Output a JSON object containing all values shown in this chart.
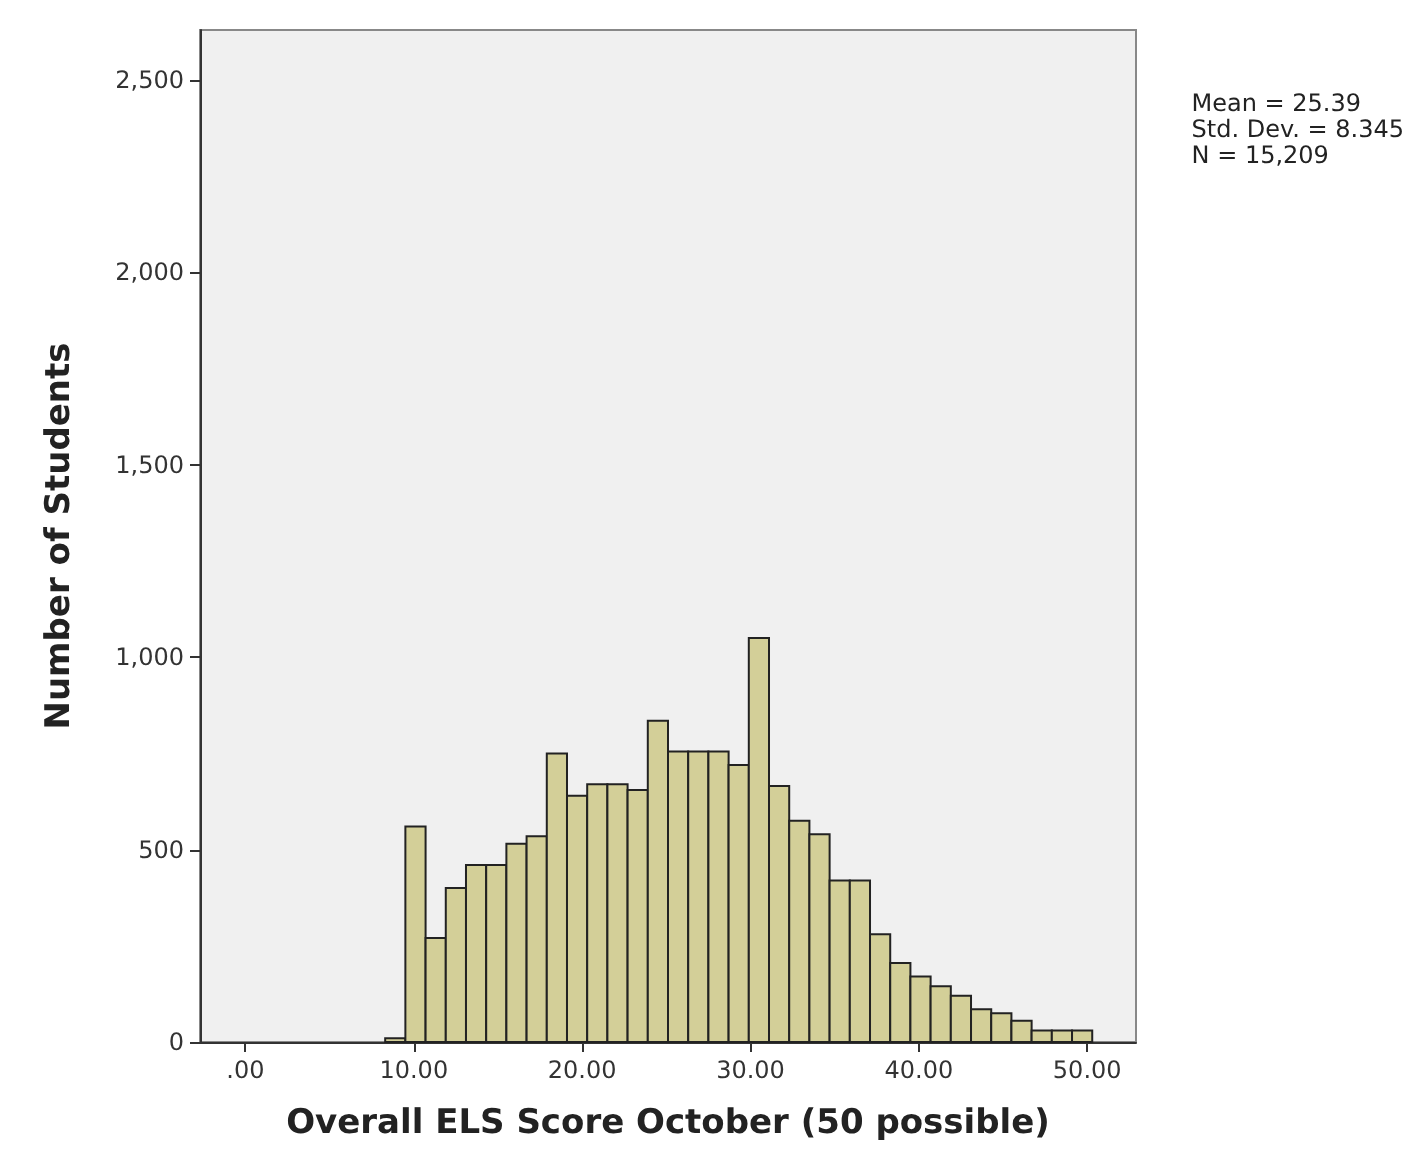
{
  "chart_data": {
    "type": "histogram",
    "xlabel": "Overall ELS Score October (50 possible)",
    "ylabel": "Number of Students",
    "bins": [
      5.9,
      7.1,
      8.3,
      9.5,
      10.7,
      11.9,
      13.1,
      14.3,
      15.5,
      16.7,
      17.9,
      19.1,
      20.3,
      21.5,
      22.7,
      23.9,
      25.1,
      26.3,
      27.5,
      28.7,
      29.9,
      31.1,
      32.3,
      33.5,
      34.7,
      35.9,
      37.1,
      38.3,
      39.5,
      40.7,
      41.9,
      43.1,
      44.3,
      45.5,
      46.7,
      47.9,
      49.1,
      50.3
    ],
    "values": [
      null,
      null,
      10,
      560,
      270,
      400,
      460,
      460,
      515,
      535,
      750,
      640,
      670,
      670,
      655,
      835,
      755,
      755,
      755,
      720,
      1050,
      665,
      575,
      540,
      420,
      420,
      280,
      205,
      170,
      145,
      120,
      85,
      75,
      55,
      30,
      30,
      30
    ],
    "color": "#d3cf98",
    "xlim": [
      -2.7,
      52.9
    ],
    "xticks": [
      {
        "value": 0,
        "label": ".00"
      },
      {
        "value": 10,
        "label": "10.00"
      },
      {
        "value": 20,
        "label": "20.00"
      },
      {
        "value": 30,
        "label": "30.00"
      },
      {
        "value": 40,
        "label": "40.00"
      },
      {
        "value": 50,
        "label": "50.00"
      }
    ],
    "ylim": [
      0,
      2630
    ],
    "yticks": [
      {
        "value": 0,
        "label": "0"
      },
      {
        "value": 500,
        "label": "500"
      },
      {
        "value": 1000,
        "label": "1,000"
      },
      {
        "value": 1500,
        "label": "1,500"
      },
      {
        "value": 2000,
        "label": "2,000"
      },
      {
        "value": 2500,
        "label": "2,500"
      }
    ],
    "grid": false,
    "annotations": [
      "Mean = 25.39\nStd. Dev. = 8.345\nN = 15,209"
    ]
  }
}
